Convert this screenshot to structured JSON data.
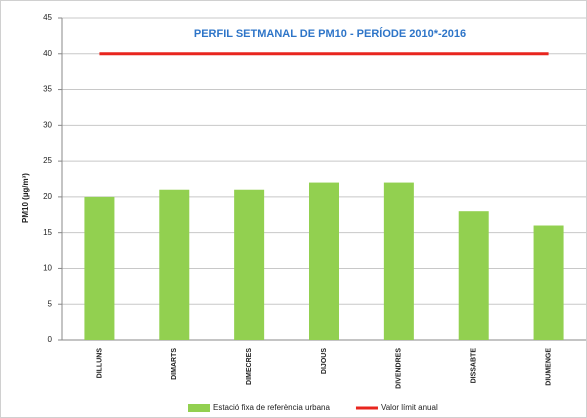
{
  "chart_data": {
    "type": "bar",
    "title": "PERFIL SETMANAL DE PM10 -  PERÍODE 2010*-2016",
    "ylabel": "PM10 (µg/m³)",
    "categories": [
      "DILLUNS",
      "DIMARTS",
      "DIMECRES",
      "DIJOUS",
      "DIVENDRES",
      "DISSABTE",
      "DIUMENGE"
    ],
    "series": [
      {
        "name": "Estació fixa de referència urbana",
        "type": "bar",
        "color": "#92d050",
        "values": [
          20,
          21,
          21,
          22,
          22,
          18,
          16
        ]
      },
      {
        "name": "Valor límit anual",
        "type": "line",
        "color": "#e8251e",
        "values": [
          40,
          40,
          40,
          40,
          40,
          40,
          40
        ]
      }
    ],
    "ylim": [
      0,
      45
    ],
    "yticks": [
      0,
      5,
      10,
      15,
      20,
      25,
      30,
      35,
      40,
      45
    ],
    "grid": true,
    "legend": "bottom"
  }
}
